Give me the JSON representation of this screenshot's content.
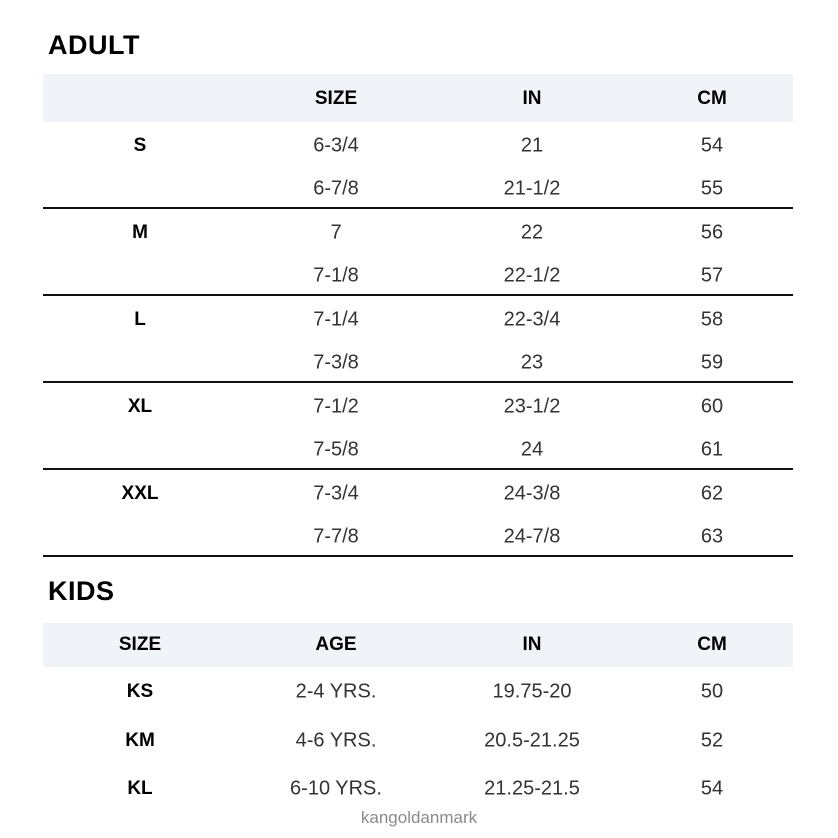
{
  "adult": {
    "title": "ADULT",
    "headers": [
      "",
      "SIZE",
      "IN",
      "CM"
    ],
    "groups": [
      {
        "label": "S",
        "rows": [
          [
            "6-3/4",
            "21",
            "54"
          ],
          [
            "6-7/8",
            "21-1/2",
            "55"
          ]
        ]
      },
      {
        "label": "M",
        "rows": [
          [
            "7",
            "22",
            "56"
          ],
          [
            "7-1/8",
            "22-1/2",
            "57"
          ]
        ]
      },
      {
        "label": "L",
        "rows": [
          [
            "7-1/4",
            "22-3/4",
            "58"
          ],
          [
            "7-3/8",
            "23",
            "59"
          ]
        ]
      },
      {
        "label": "XL",
        "rows": [
          [
            "7-1/2",
            "23-1/2",
            "60"
          ],
          [
            "7-5/8",
            "24",
            "61"
          ]
        ]
      },
      {
        "label": "XXL",
        "rows": [
          [
            "7-3/4",
            "24-3/8",
            "62"
          ],
          [
            "7-7/8",
            "24-7/8",
            "63"
          ]
        ]
      }
    ]
  },
  "kids": {
    "title": "KIDS",
    "headers": [
      "SIZE",
      "AGE",
      "IN",
      "CM"
    ],
    "rows": [
      [
        "KS",
        "2-4 YRS.",
        "19.75-20",
        "50"
      ],
      [
        "KM",
        "4-6 YRS.",
        "20.5-21.25",
        "52"
      ],
      [
        "KL",
        "6-10 YRS.",
        "21.25-21.5",
        "54"
      ]
    ]
  },
  "watermark": "kangoldanmark",
  "colors": {
    "header_bg": "#f0f4f8",
    "rule": "#111111"
  }
}
